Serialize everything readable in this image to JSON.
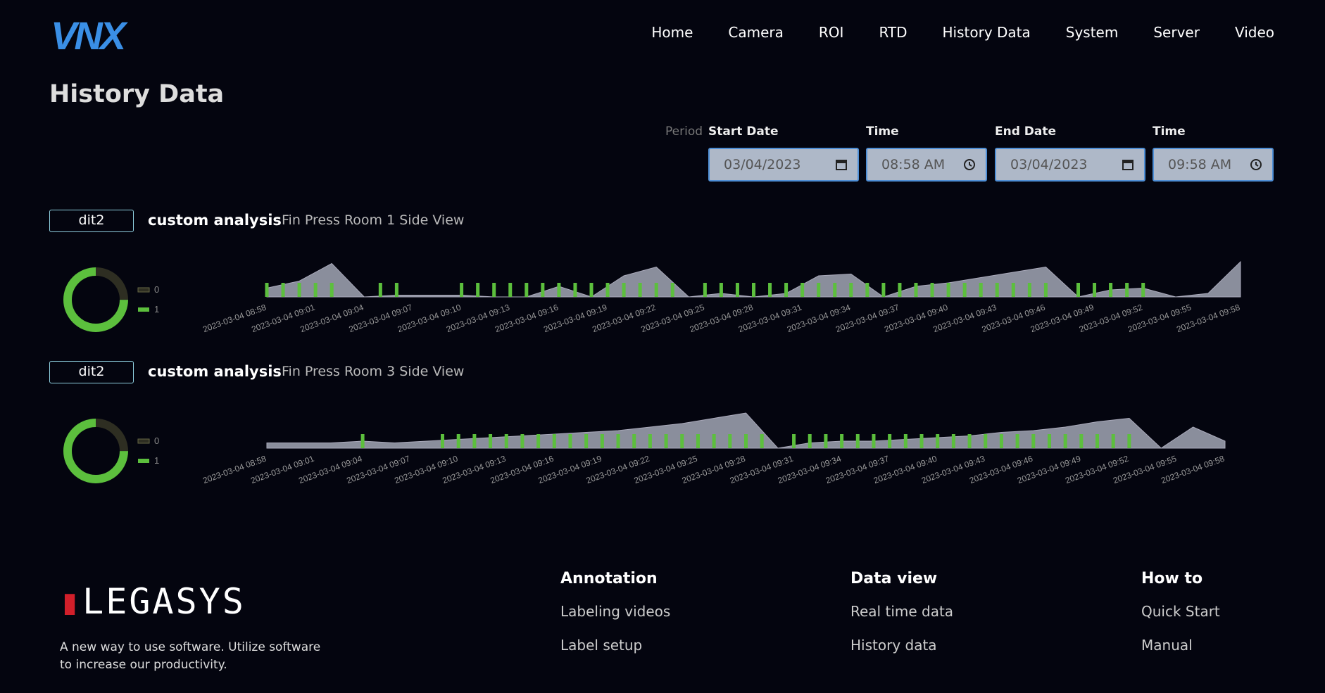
{
  "nav": {
    "logo": "VNX",
    "links": [
      "Home",
      "Camera",
      "ROI",
      "RTD",
      "History Data",
      "System",
      "Server",
      "Video"
    ]
  },
  "page": {
    "title": "History Data"
  },
  "filters": {
    "period": "Period",
    "start_date": {
      "label": "Start Date",
      "value": "03/04/2023"
    },
    "start_time": {
      "label": "Time",
      "value": "08:58 AM"
    },
    "end_date": {
      "label": "End Date",
      "value": "03/04/2023"
    },
    "end_time": {
      "label": "Time",
      "value": "09:58 AM"
    }
  },
  "panels": [
    {
      "badge": "dit2",
      "analysis": "custom analysis",
      "camera": "Fin Press Room 1 Side View",
      "donut": {
        "labels": [
          "0",
          "1"
        ],
        "values": [
          25,
          75
        ],
        "colors": [
          "#2e2e22",
          "#5cbf3d"
        ]
      },
      "timeline": {
        "labels": [
          "2023-03-04 08:58",
          "2023-03-04 09:01",
          "2023-03-04 09:04",
          "2023-03-04 09:07",
          "2023-03-04 09:10",
          "2023-03-04 09:13",
          "2023-03-04 09:16",
          "2023-03-04 09:19",
          "2023-03-04 09:22",
          "2023-03-04 09:25",
          "2023-03-04 09:28",
          "2023-03-04 09:31",
          "2023-03-04 09:34",
          "2023-03-04 09:37",
          "2023-03-04 09:40",
          "2023-03-04 09:43",
          "2023-03-04 09:46",
          "2023-03-04 09:49",
          "2023-03-04 09:52",
          "2023-03-04 09:55",
          "2023-03-04 09:58"
        ],
        "bars": [
          1,
          1,
          1,
          1,
          1,
          0,
          0,
          1,
          1,
          0,
          0,
          0,
          1,
          1,
          1,
          1,
          1,
          1,
          1,
          1,
          1,
          1,
          1,
          1,
          1,
          1,
          0,
          1,
          1,
          1,
          1,
          1,
          1,
          1,
          1,
          1,
          1,
          1,
          1,
          1,
          1,
          1,
          1,
          1,
          1,
          1,
          1,
          1,
          1,
          0,
          1,
          1,
          1,
          1,
          1,
          0,
          0,
          0,
          0,
          0,
          0
        ],
        "area": [
          0.25,
          0.45,
          0.95,
          0,
          0.05,
          0.05,
          0.05,
          0,
          0,
          0.3,
          0,
          0.6,
          0.85,
          0,
          0.1,
          0,
          0.1,
          0.6,
          0.65,
          0,
          0.3,
          0.4,
          0.55,
          0.7,
          0.85,
          0,
          0.2,
          0.25,
          0,
          0.1,
          1.0
        ],
        "bar_color": "#5cbf3d",
        "area_color": "#8a8e9c"
      }
    },
    {
      "badge": "dit2",
      "analysis": "custom analysis",
      "camera": "Fin Press Room 3 Side View",
      "donut": {
        "labels": [
          "0",
          "1"
        ],
        "values": [
          25,
          75
        ],
        "colors": [
          "#2e2e22",
          "#5cbf3d"
        ]
      },
      "timeline": {
        "labels": [
          "2023-03-04 08:58",
          "2023-03-04 09:01",
          "2023-03-04 09:04",
          "2023-03-04 09:07",
          "2023-03-04 09:10",
          "2023-03-04 09:13",
          "2023-03-04 09:16",
          "2023-03-04 09:19",
          "2023-03-04 09:22",
          "2023-03-04 09:25",
          "2023-03-04 09:28",
          "2023-03-04 09:31",
          "2023-03-04 09:34",
          "2023-03-04 09:37",
          "2023-03-04 09:40",
          "2023-03-04 09:43",
          "2023-03-04 09:46",
          "2023-03-04 09:49",
          "2023-03-04 09:52",
          "2023-03-04 09:55",
          "2023-03-04 09:58"
        ],
        "bars": [
          0,
          0,
          0,
          0,
          0,
          0,
          1,
          0,
          0,
          0,
          0,
          1,
          1,
          1,
          1,
          1,
          1,
          1,
          1,
          1,
          1,
          1,
          1,
          1,
          1,
          1,
          1,
          1,
          1,
          1,
          1,
          1,
          0,
          1,
          1,
          1,
          1,
          1,
          1,
          1,
          1,
          1,
          1,
          1,
          1,
          1,
          1,
          1,
          1,
          1,
          1,
          1,
          1,
          1,
          1,
          0,
          0,
          0,
          0,
          0,
          0
        ],
        "area": [
          0.15,
          0.15,
          0.15,
          0.2,
          0.15,
          0.2,
          0.25,
          0.3,
          0.35,
          0.4,
          0.45,
          0.5,
          0.6,
          0.7,
          0.85,
          1.0,
          0,
          0.15,
          0.2,
          0.2,
          0.25,
          0.3,
          0.35,
          0.45,
          0.5,
          0.6,
          0.75,
          0.85,
          0,
          0.6,
          0.2
        ],
        "bar_color": "#5cbf3d",
        "area_color": "#8a8e9c"
      }
    }
  ],
  "footer": {
    "logo": "LEGASYS",
    "tagline": "A new way to use software. Utilize software to increase our productivity.",
    "columns": [
      {
        "title": "Annotation",
        "links": [
          "Labeling videos",
          "Label setup"
        ]
      },
      {
        "title": "Data view",
        "links": [
          "Real time data",
          "History data"
        ]
      },
      {
        "title": "How to",
        "links": [
          "Quick Start",
          "Manual"
        ]
      }
    ]
  }
}
